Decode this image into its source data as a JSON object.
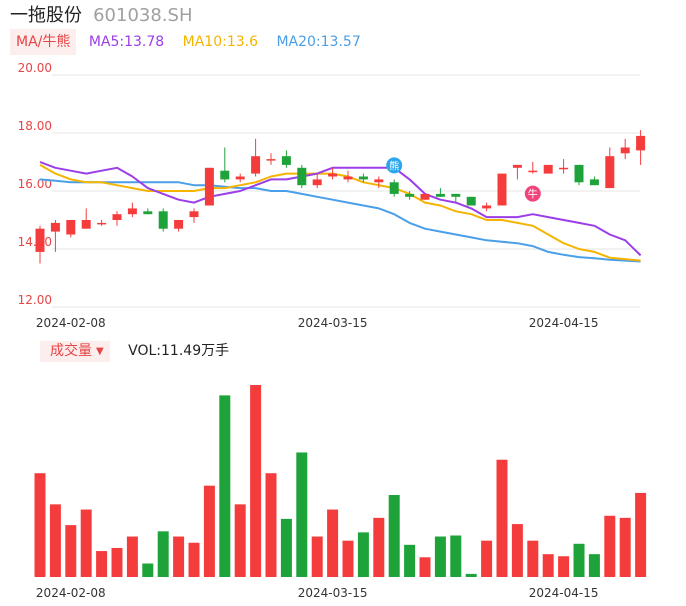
{
  "header": {
    "name": "一拖股份",
    "code": "601038.SH"
  },
  "ma": {
    "label": "MA/牛熊",
    "ma5": "MA5:13.78",
    "ma10": "MA10:13.6",
    "ma20": "MA20:13.57",
    "colors": {
      "ma5": "#9b3ee8",
      "ma10": "#f5b400",
      "ma20": "#4a9fe8"
    }
  },
  "volume": {
    "label": "成交量",
    "text": "VOL:11.49万手"
  },
  "colors": {
    "up": "#f53c3c",
    "down": "#1ea33a",
    "grid": "#e6e6e6",
    "ylabel": "#e64545"
  },
  "chart_data": {
    "type": "candlestick",
    "price_ylim": [
      12,
      20
    ],
    "price_ticks": [
      "20.00",
      "18.00",
      "16.00",
      "14.00",
      "12.00"
    ],
    "x_ticks": [
      {
        "label": "2024-02-08",
        "index": 2
      },
      {
        "label": "2024-03-15",
        "index": 19
      },
      {
        "label": "2024-04-15",
        "index": 34
      }
    ],
    "candles": [
      {
        "o": 13.9,
        "h": 14.8,
        "l": 13.5,
        "c": 14.7
      },
      {
        "o": 14.6,
        "h": 15.0,
        "l": 13.9,
        "c": 14.9
      },
      {
        "o": 14.5,
        "h": 15.0,
        "l": 14.4,
        "c": 15.0
      },
      {
        "o": 14.7,
        "h": 15.4,
        "l": 14.7,
        "c": 15.0
      },
      {
        "o": 14.9,
        "h": 15.0,
        "l": 14.8,
        "c": 14.9
      },
      {
        "o": 15.0,
        "h": 15.3,
        "l": 14.8,
        "c": 15.2
      },
      {
        "o": 15.2,
        "h": 15.6,
        "l": 15.1,
        "c": 15.4
      },
      {
        "o": 15.3,
        "h": 15.4,
        "l": 15.2,
        "c": 15.2
      },
      {
        "o": 15.3,
        "h": 15.4,
        "l": 14.6,
        "c": 14.7
      },
      {
        "o": 14.7,
        "h": 15.0,
        "l": 14.6,
        "c": 15.0
      },
      {
        "o": 15.1,
        "h": 15.4,
        "l": 14.9,
        "c": 15.3
      },
      {
        "o": 15.5,
        "h": 16.8,
        "l": 15.5,
        "c": 16.8
      },
      {
        "o": 16.7,
        "h": 17.5,
        "l": 16.3,
        "c": 16.4
      },
      {
        "o": 16.4,
        "h": 16.6,
        "l": 16.3,
        "c": 16.5
      },
      {
        "o": 16.6,
        "h": 17.8,
        "l": 16.5,
        "c": 17.2
      },
      {
        "o": 17.1,
        "h": 17.3,
        "l": 16.9,
        "c": 17.1
      },
      {
        "o": 17.2,
        "h": 17.4,
        "l": 16.8,
        "c": 16.9
      },
      {
        "o": 16.8,
        "h": 16.9,
        "l": 16.1,
        "c": 16.2
      },
      {
        "o": 16.2,
        "h": 16.6,
        "l": 16.1,
        "c": 16.4
      },
      {
        "o": 16.5,
        "h": 16.8,
        "l": 16.4,
        "c": 16.6
      },
      {
        "o": 16.4,
        "h": 16.7,
        "l": 16.3,
        "c": 16.5
      },
      {
        "o": 16.5,
        "h": 16.6,
        "l": 16.3,
        "c": 16.4
      },
      {
        "o": 16.3,
        "h": 16.5,
        "l": 16.1,
        "c": 16.4
      },
      {
        "o": 16.3,
        "h": 16.4,
        "l": 15.8,
        "c": 15.9
      },
      {
        "o": 15.9,
        "h": 16.0,
        "l": 15.7,
        "c": 15.8
      },
      {
        "o": 15.7,
        "h": 15.9,
        "l": 15.7,
        "c": 15.9
      },
      {
        "o": 15.9,
        "h": 16.1,
        "l": 15.8,
        "c": 15.8
      },
      {
        "o": 15.9,
        "h": 15.9,
        "l": 15.6,
        "c": 15.8
      },
      {
        "o": 15.8,
        "h": 15.8,
        "l": 15.5,
        "c": 15.5
      },
      {
        "o": 15.4,
        "h": 15.6,
        "l": 15.3,
        "c": 15.5
      },
      {
        "o": 15.5,
        "h": 16.6,
        "l": 15.5,
        "c": 16.6
      },
      {
        "o": 16.8,
        "h": 16.9,
        "l": 16.4,
        "c": 16.9
      },
      {
        "o": 16.7,
        "h": 17.0,
        "l": 16.6,
        "c": 16.7
      },
      {
        "o": 16.6,
        "h": 16.9,
        "l": 16.6,
        "c": 16.9
      },
      {
        "o": 16.8,
        "h": 17.1,
        "l": 16.6,
        "c": 16.8
      },
      {
        "o": 16.9,
        "h": 16.9,
        "l": 16.2,
        "c": 16.3
      },
      {
        "o": 16.4,
        "h": 16.5,
        "l": 16.2,
        "c": 16.2
      },
      {
        "o": 16.1,
        "h": 17.5,
        "l": 16.1,
        "c": 17.2
      },
      {
        "o": 17.3,
        "h": 17.8,
        "l": 17.1,
        "c": 17.5
      },
      {
        "o": 17.4,
        "h": 18.1,
        "l": 16.9,
        "c": 17.9
      }
    ],
    "ma5": [
      17.0,
      16.8,
      16.7,
      16.6,
      16.7,
      16.8,
      16.5,
      16.1,
      15.9,
      15.7,
      15.6,
      15.8,
      15.9,
      16.0,
      16.2,
      16.4,
      16.4,
      16.5,
      16.6,
      16.8,
      16.8,
      16.8,
      16.8,
      16.8,
      16.4,
      15.9,
      15.7,
      15.6,
      15.4,
      15.1,
      15.1,
      15.1,
      15.2,
      15.1,
      15.0,
      14.9,
      14.8,
      14.5,
      14.3,
      13.78
    ],
    "ma10": [
      16.9,
      16.6,
      16.4,
      16.3,
      16.3,
      16.2,
      16.1,
      16.0,
      16.0,
      16.0,
      16.0,
      16.1,
      16.1,
      16.2,
      16.3,
      16.5,
      16.6,
      16.6,
      16.6,
      16.6,
      16.5,
      16.3,
      16.2,
      16.1,
      15.9,
      15.6,
      15.5,
      15.3,
      15.2,
      15.0,
      15.0,
      14.9,
      14.8,
      14.5,
      14.2,
      14.0,
      13.9,
      13.7,
      13.65,
      13.6
    ],
    "ma20": [
      16.4,
      16.35,
      16.3,
      16.3,
      16.3,
      16.3,
      16.3,
      16.3,
      16.3,
      16.3,
      16.2,
      16.2,
      16.15,
      16.1,
      16.1,
      16.0,
      16.0,
      15.9,
      15.8,
      15.7,
      15.6,
      15.5,
      15.4,
      15.2,
      14.9,
      14.7,
      14.6,
      14.5,
      14.4,
      14.3,
      14.25,
      14.2,
      14.1,
      13.9,
      13.8,
      13.72,
      13.68,
      13.63,
      13.6,
      13.57
    ],
    "volumes": [
      100,
      70,
      50,
      65,
      25,
      28,
      39,
      13,
      44,
      39,
      33,
      88,
      175,
      70,
      185,
      100,
      56,
      120,
      39,
      65,
      35,
      43,
      57,
      79,
      31,
      19,
      39,
      40,
      3,
      35,
      113,
      51,
      35,
      22,
      20,
      32,
      22,
      59,
      57,
      81
    ],
    "markers": [
      {
        "index": 23,
        "symbol": "熊",
        "type": "bear"
      },
      {
        "index": 32,
        "symbol": "牛",
        "type": "bull"
      }
    ]
  }
}
